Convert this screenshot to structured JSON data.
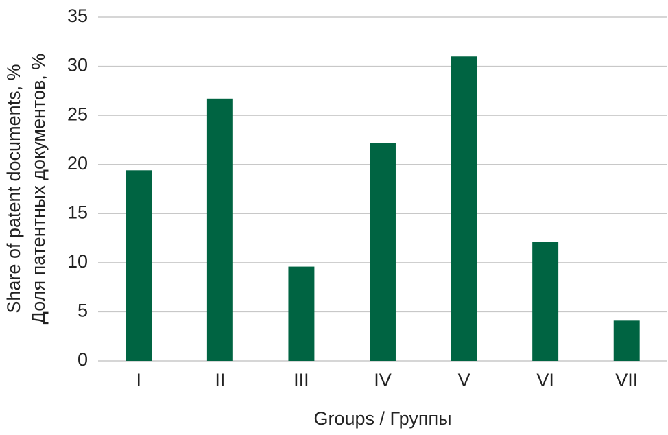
{
  "chart_data": {
    "type": "bar",
    "xlabel": "Groups / Группы",
    "ylabel": [
      "Share of patent documents, %",
      "Доля патентных документов, %"
    ],
    "categories": [
      "I",
      "II",
      "III",
      "IV",
      "V",
      "VI",
      "VII"
    ],
    "values": [
      19.4,
      26.7,
      9.6,
      22.2,
      31.0,
      12.1,
      4.1
    ],
    "color": "#006442",
    "ylim": [
      0,
      35
    ],
    "yticks": [
      0,
      5,
      10,
      15,
      20,
      25,
      30,
      35
    ],
    "grid": true
  }
}
